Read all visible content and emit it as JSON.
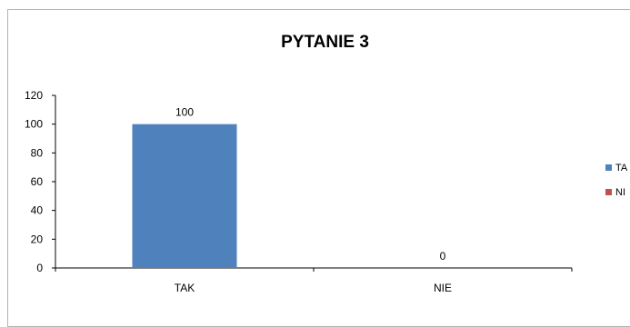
{
  "chart_data": {
    "type": "bar",
    "title": "PYTANIE 3",
    "categories": [
      "TAK",
      "NIE"
    ],
    "values": [
      100,
      0
    ],
    "data_labels": [
      "100",
      "0"
    ],
    "colors": [
      "#4f81bd",
      "#c0504d"
    ],
    "ylim": [
      0,
      120
    ],
    "yticks": [
      0,
      20,
      40,
      60,
      80,
      100,
      120
    ],
    "xlabel": "",
    "ylabel": "",
    "grid": false,
    "legend_position": "right",
    "legend": [
      {
        "label": "TA",
        "color": "#4f81bd"
      },
      {
        "label": "NI",
        "color": "#c0504d"
      }
    ]
  }
}
